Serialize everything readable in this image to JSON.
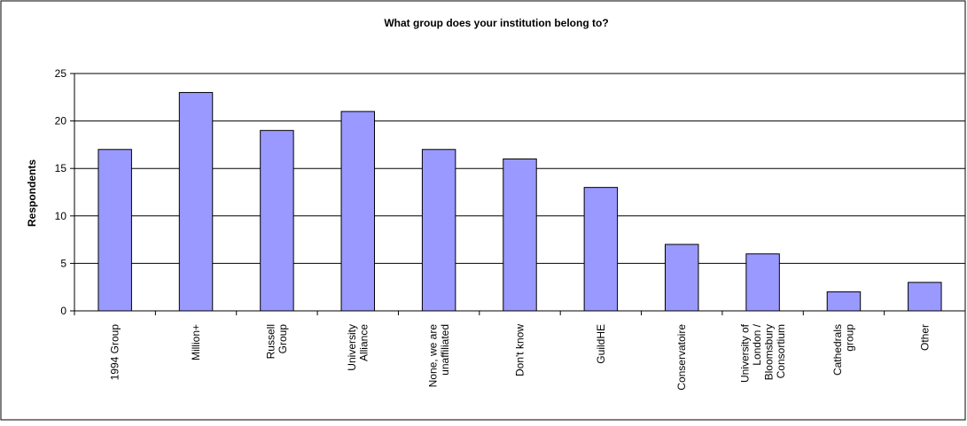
{
  "chart_data": {
    "type": "bar",
    "title": "What group does your institution belong to?",
    "ylabel": "Respondents",
    "xlabel": "",
    "ylim": [
      0,
      25
    ],
    "yticks": [
      0,
      5,
      10,
      15,
      20,
      25
    ],
    "grid": true,
    "legend": "none",
    "bar_color": "#9999ff",
    "categories": [
      [
        "1994 Group"
      ],
      [
        "Million+"
      ],
      [
        "Russell",
        "Group"
      ],
      [
        "University",
        "Alliance"
      ],
      [
        "None, we are",
        "unaffiliated"
      ],
      [
        "Don't know"
      ],
      [
        "GuildHE"
      ],
      [
        "Conservatoire"
      ],
      [
        "University of",
        "London /",
        "Bloomsbury",
        "Consortium"
      ],
      [
        "Cathedrals",
        "group"
      ],
      [
        "Other"
      ]
    ],
    "values": [
      17,
      23,
      19,
      21,
      17,
      16,
      13,
      7,
      6,
      2,
      3
    ]
  }
}
